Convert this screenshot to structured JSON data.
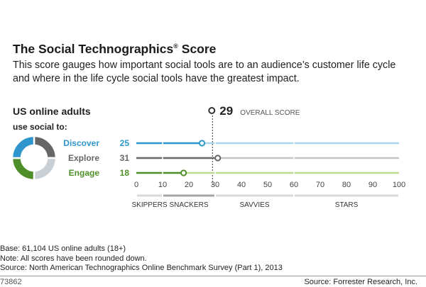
{
  "header": {
    "title": "The Social Technographics",
    "title_mark": "®",
    "title_suffix": "Score",
    "subtitle": "This score gauges how important social tools are to an audience’s customer life cycle and where in the life cycle social tools have the greatest impact."
  },
  "segment": {
    "line1": "US online adults",
    "line2": "use social to:"
  },
  "colors": {
    "discover": "#2e96cc",
    "discover_light": "#a9d4ec",
    "explore": "#666666",
    "explore_light": "#c4c4c4",
    "engage": "#4f8f2a",
    "engage_light": "#b9dc8d",
    "donut_gray": "#c9d0d6"
  },
  "chart_data": {
    "type": "bar",
    "title": "The Social Technographics® Score",
    "overall_score": 29,
    "overall_label": "OVERALL SCORE",
    "categories": [
      "Discover",
      "Explore",
      "Engage"
    ],
    "values": [
      25,
      31,
      18
    ],
    "series": [
      {
        "name": "Discover",
        "value": 25,
        "color_key": "discover"
      },
      {
        "name": "Explore",
        "value": 31,
        "color_key": "explore"
      },
      {
        "name": "Engage",
        "value": 18,
        "color_key": "engage"
      }
    ],
    "xlim": [
      0,
      100
    ],
    "xticks": [
      0,
      10,
      20,
      30,
      40,
      50,
      60,
      70,
      80,
      90,
      100
    ],
    "bands": [
      {
        "label": "SKIPPERS",
        "range": [
          0,
          10
        ]
      },
      {
        "label": "SNACKERS",
        "range": [
          10,
          30
        ]
      },
      {
        "label": "SAVVIES",
        "range": [
          30,
          60
        ]
      },
      {
        "label": "STARS",
        "range": [
          60,
          100
        ]
      }
    ],
    "highlighted_band": "SNACKERS"
  },
  "notes": [
    "Base: 61,104 US online adults (18+)",
    "Note: All scores have been rounded down.",
    "Source: North American Technographics Online Benchmark Survey (Part 1), 2013"
  ],
  "footer": {
    "chart_id": "73862",
    "source": "Source: Forrester Research, Inc."
  }
}
